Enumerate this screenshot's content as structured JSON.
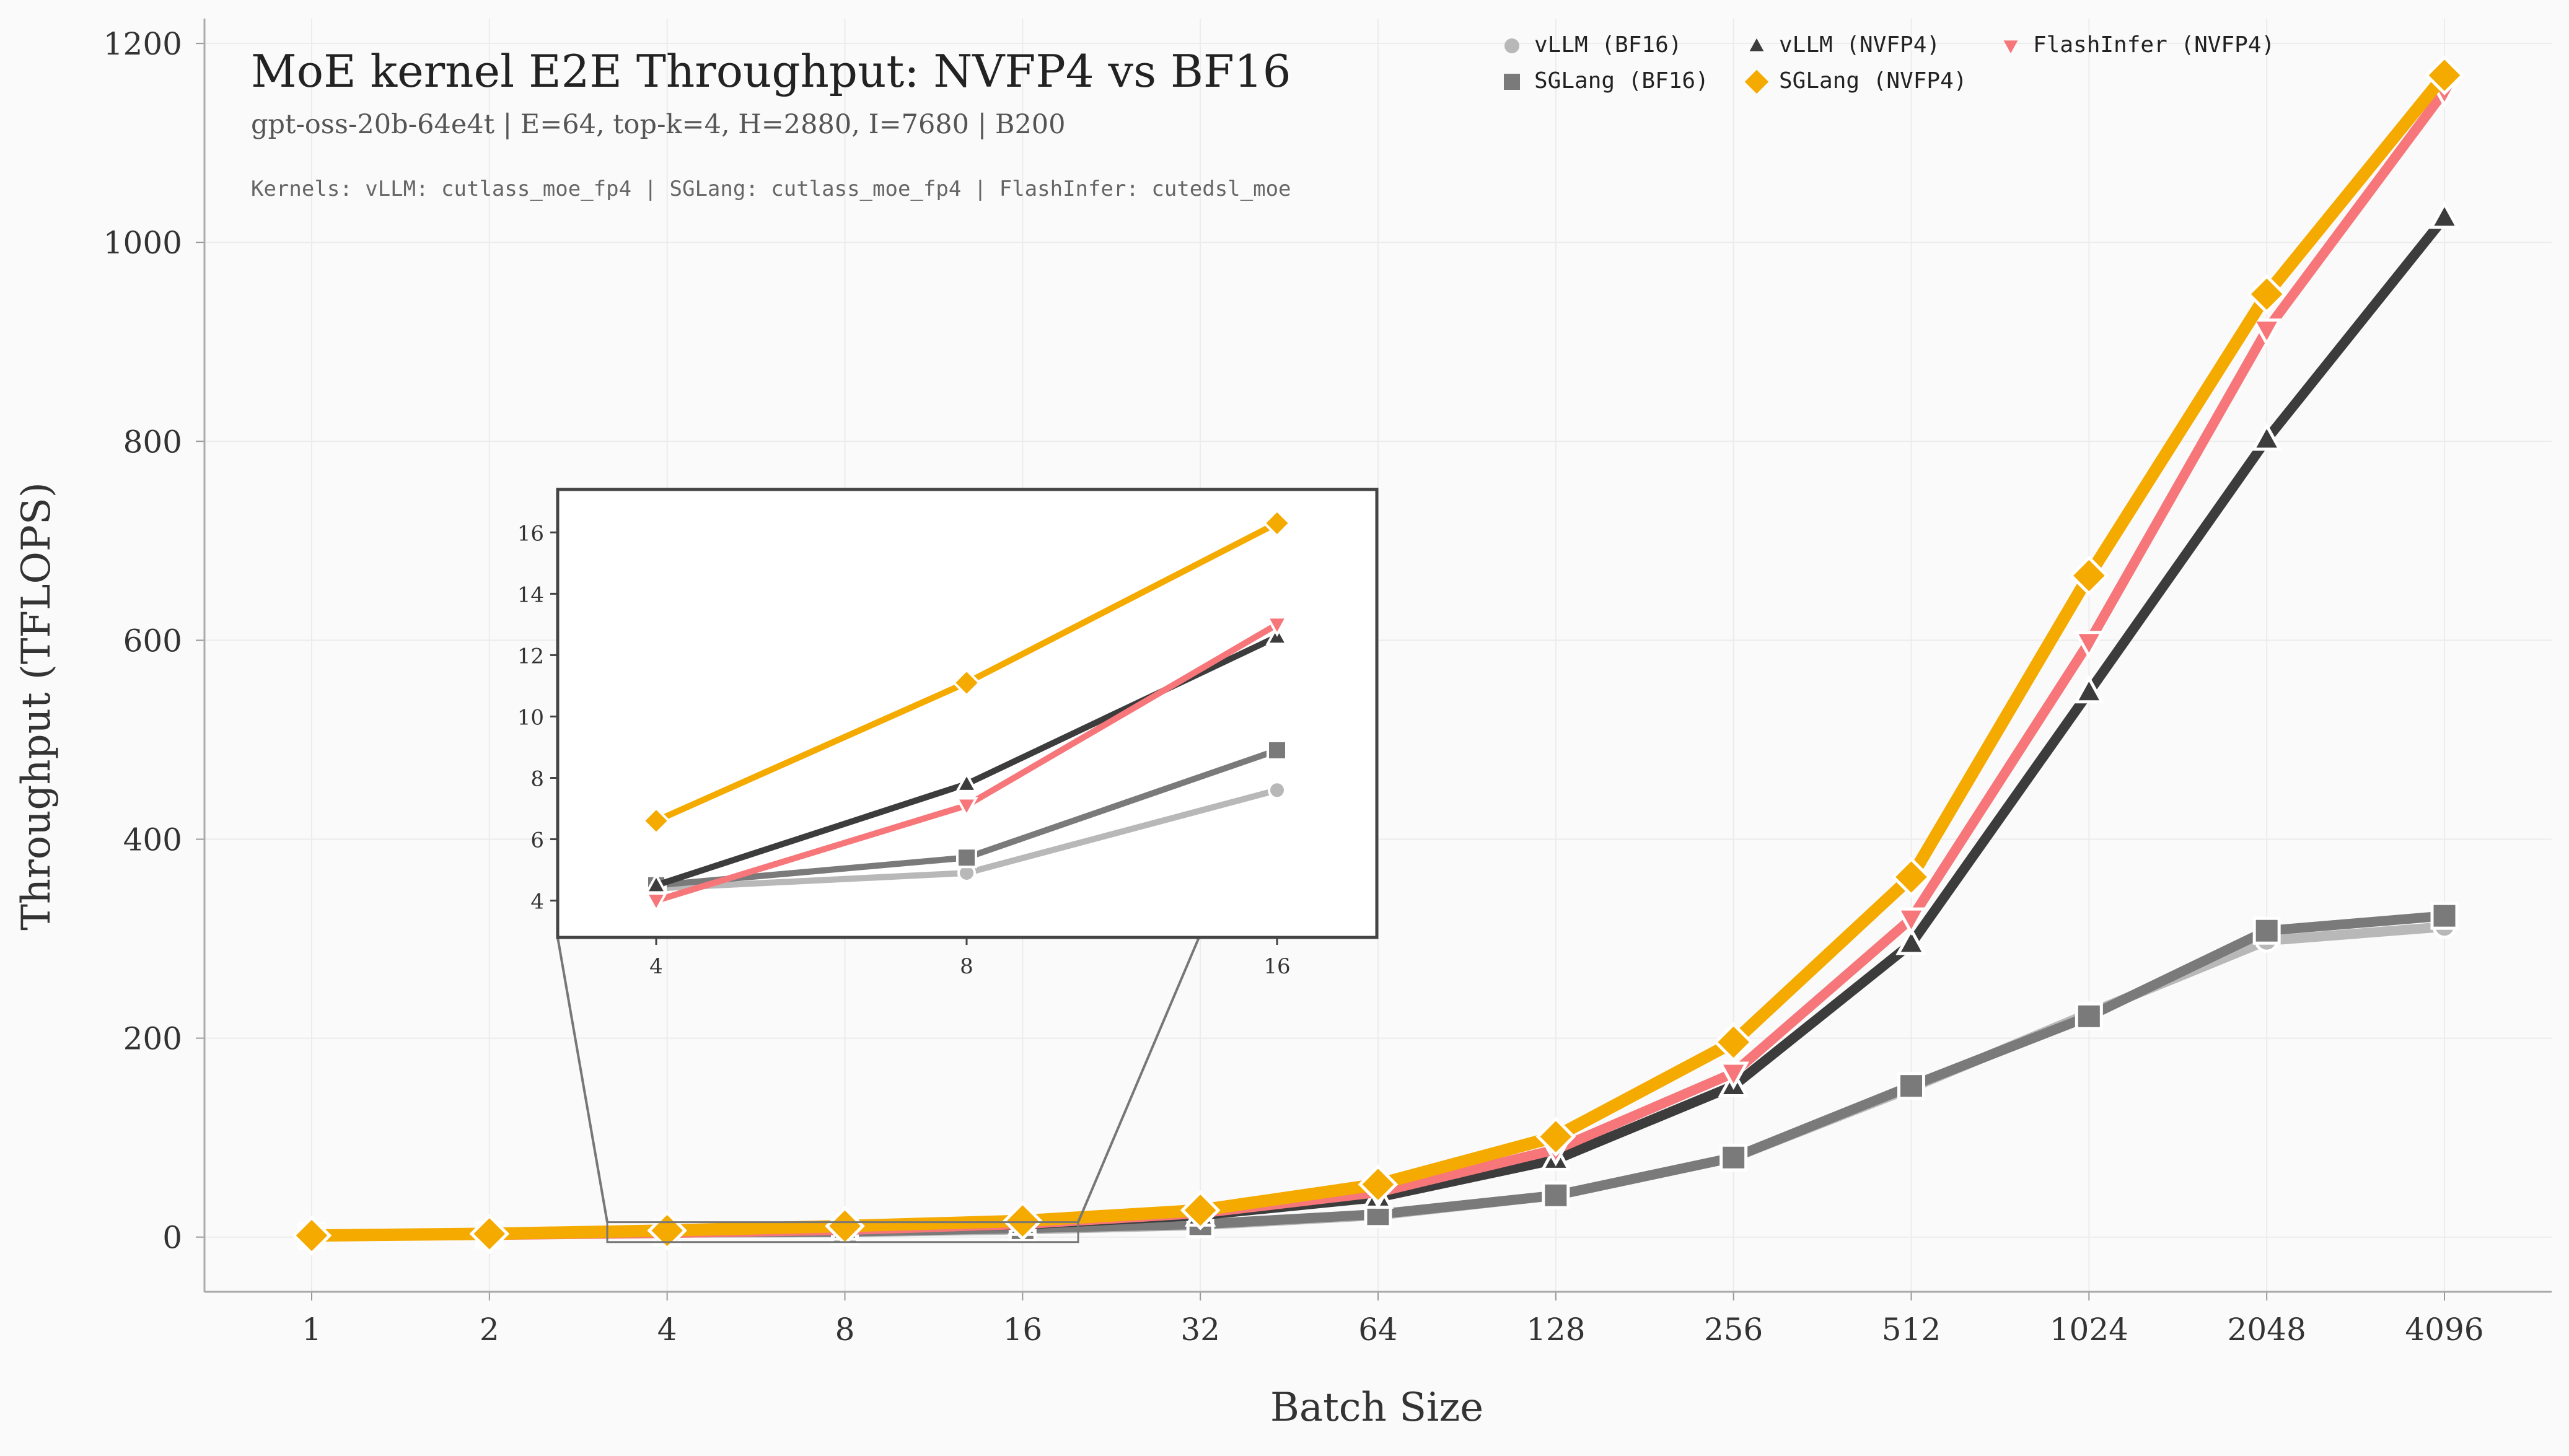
{
  "chart_data": {
    "type": "line",
    "title": "MoE kernel E2E Throughput: NVFP4 vs BF16",
    "subtitle": "gpt-oss-20b-64e4t | E=64, top-k=4, H=2880, I=7680 | B200",
    "note": "Kernels: vLLM: cutlass_moe_fp4 | SGLang: cutlass_moe_fp4 | FlashInfer: cutedsl_moe",
    "xlabel": "Batch Size",
    "ylabel": "Throughput (TFLOPS)",
    "ylim": [
      -55,
      1225
    ],
    "yticks": [
      0,
      200,
      400,
      600,
      800,
      1000,
      1200
    ],
    "categories": [
      "1",
      "2",
      "4",
      "8",
      "16",
      "32",
      "64",
      "128",
      "256",
      "512",
      "1024",
      "2048",
      "4096"
    ],
    "legend_position": "top-right",
    "series": [
      {
        "name": "vLLM (BF16)",
        "color": "#b8b8b8",
        "marker": "circle",
        "values": [
          1.2,
          2.3,
          4.4,
          4.9,
          7.6,
          12,
          22,
          42,
          80,
          150,
          225,
          298,
          312
        ]
      },
      {
        "name": "SGLang (BF16)",
        "color": "#7a7a7a",
        "marker": "square",
        "values": [
          1.2,
          2.3,
          4.5,
          5.4,
          8.9,
          13,
          23,
          42,
          80,
          152,
          222,
          308,
          323
        ]
      },
      {
        "name": "vLLM (NVFP4)",
        "color": "#3c3c3c",
        "marker": "triangle-up",
        "values": [
          1.2,
          2.3,
          4.5,
          7.8,
          12.6,
          22,
          40,
          78,
          152,
          295,
          548,
          802,
          1025
        ]
      },
      {
        "name": "FlashInfer (NVFP4)",
        "color": "#f6767a",
        "marker": "triangle-down",
        "values": [
          1.1,
          2.1,
          4.0,
          7.1,
          13.0,
          24,
          45,
          88,
          165,
          320,
          598,
          912,
          1152
        ]
      },
      {
        "name": "SGLang (NVFP4)",
        "color": "#f5aa00",
        "marker": "diamond",
        "values": [
          1.6,
          3.3,
          6.6,
          11.1,
          16.3,
          27,
          53,
          101,
          196,
          362,
          665,
          948,
          1168
        ]
      }
    ],
    "inset": {
      "categories": [
        "4",
        "8",
        "16"
      ],
      "ylim": [
        2.8,
        17.4
      ],
      "yticks": [
        4,
        6,
        8,
        10,
        12,
        14,
        16
      ]
    }
  }
}
